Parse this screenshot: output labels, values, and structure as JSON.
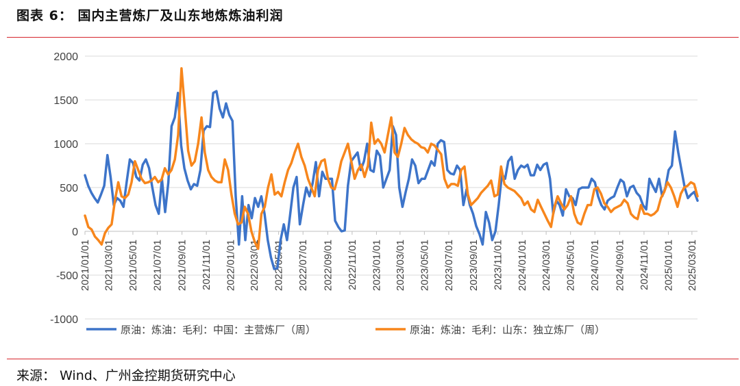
{
  "header": {
    "title": "图表 6：  国内主营炼厂及山东地炼炼油利润"
  },
  "footer": {
    "source": "来源：  Wind、广州金控期货研究中心"
  },
  "colors": {
    "series1": "#3d74c9",
    "series2": "#f7861c",
    "rule": "#d6242a",
    "grid": "#d9d9d9"
  },
  "chart_data": {
    "type": "line",
    "title": "",
    "xlabel": "",
    "ylabel": "",
    "ylim": [
      -1000,
      2000
    ],
    "yticks": [
      "2000",
      "1500",
      "1000",
      "500",
      "0",
      "-500",
      "-1000"
    ],
    "x_range": [
      "2021/01/01",
      "2025/03/15"
    ],
    "x_ticks": [
      "2021/01/01",
      "2021/03/01",
      "2021/05/01",
      "2021/07/01",
      "2021/09/01",
      "2021/11/01",
      "2022/01/01",
      "2022/03/01",
      "2022/05/01",
      "2022/07/01",
      "2022/09/01",
      "2022/11/01",
      "2023/01/01",
      "2023/03/01",
      "2023/05/01",
      "2023/07/01",
      "2023/09/01",
      "2023/11/01",
      "2024/01/01",
      "2024/03/01",
      "2024/05/01",
      "2024/07/01",
      "2024/09/01",
      "2024/11/01",
      "2025/01/01",
      "2025/03/01"
    ],
    "series": [
      {
        "name": "原油：炼油：毛利：中国：主营炼厂（周）",
        "color": "#3d74c9",
        "values": [
          640,
          520,
          440,
          380,
          330,
          420,
          520,
          870,
          620,
          300,
          380,
          350,
          280,
          560,
          820,
          780,
          620,
          580,
          760,
          820,
          720,
          500,
          300,
          200,
          600,
          220,
          560,
          1200,
          1300,
          1580,
          980,
          720,
          580,
          480,
          540,
          520,
          700,
          1150,
          1200,
          1190,
          1580,
          1600,
          1400,
          1300,
          1460,
          1330,
          1260,
          400,
          -150,
          400,
          -100,
          300,
          150,
          380,
          280,
          400,
          200,
          -100,
          -300,
          -430,
          -420,
          -100,
          80,
          -100,
          200,
          500,
          620,
          80,
          300,
          500,
          400,
          550,
          790,
          400,
          680,
          600,
          600,
          600,
          120,
          50,
          0,
          10,
          520,
          800,
          850,
          900,
          700,
          800,
          1000,
          700,
          680,
          920,
          860,
          500,
          600,
          700,
          1200,
          1100,
          500,
          280,
          450,
          600,
          820,
          750,
          550,
          600,
          600,
          700,
          800,
          750,
          1000,
          1040,
          1020,
          700,
          660,
          650,
          750,
          700,
          300,
          480,
          300,
          200,
          60,
          -30,
          -150,
          220,
          100,
          -100,
          0,
          300,
          650,
          600,
          800,
          850,
          600,
          700,
          750,
          730,
          760,
          640,
          640,
          760,
          700,
          760,
          780,
          600,
          200,
          350,
          300,
          180,
          480,
          400,
          380,
          300,
          480,
          500,
          500,
          500,
          600,
          560,
          400,
          300,
          250,
          350,
          380,
          400,
          500,
          590,
          560,
          400,
          500,
          520,
          440,
          400,
          300,
          250,
          600,
          520,
          450,
          600,
          400,
          500,
          700,
          750,
          1140,
          900,
          700,
          500,
          380,
          420,
          450,
          350
        ]
      },
      {
        "name": "原油：炼油：毛利：山东：独立炼厂（周）",
        "color": "#f7861c",
        "values": [
          180,
          50,
          20,
          -60,
          -100,
          -150,
          -20,
          40,
          80,
          350,
          560,
          400,
          380,
          420,
          560,
          800,
          700,
          600,
          550,
          560,
          580,
          620,
          560,
          590,
          720,
          650,
          700,
          820,
          1100,
          1860,
          1400,
          920,
          750,
          800,
          1000,
          1300,
          900,
          700,
          620,
          580,
          560,
          560,
          820,
          700,
          420,
          200,
          80,
          100,
          280,
          200,
          0,
          -120,
          -200,
          200,
          280,
          500,
          650,
          420,
          450,
          400,
          560,
          700,
          780,
          900,
          1000,
          850,
          750,
          600,
          500,
          400,
          700,
          800,
          820,
          600,
          500,
          480,
          620,
          800,
          900,
          1000,
          800,
          600,
          700,
          760,
          620,
          750,
          1240,
          1000,
          1050,
          1000,
          900,
          1100,
          1300,
          900,
          850,
          1000,
          1180,
          1100,
          1050,
          1020,
          1000,
          960,
          950,
          900,
          1000,
          980,
          930,
          880,
          600,
          500,
          540,
          540,
          520,
          700,
          740,
          420,
          300,
          340,
          380,
          440,
          480,
          520,
          580,
          400,
          420,
          740,
          540,
          500,
          480,
          460,
          420,
          380,
          300,
          340,
          250,
          220,
          360,
          280,
          200,
          120,
          50,
          280,
          400,
          320,
          250,
          300,
          400,
          200,
          100,
          80,
          200,
          300,
          300,
          480,
          500,
          430,
          320,
          280,
          220,
          260,
          280,
          300,
          360,
          320,
          200,
          160,
          140,
          300,
          200,
          200,
          180,
          200,
          240,
          380,
          450,
          560,
          500,
          400,
          280,
          430,
          500,
          520,
          560,
          540,
          400
        ]
      }
    ],
    "legend": {
      "position": "bottom",
      "items": [
        "原油：炼油：毛利：中国：主营炼厂（周）",
        "原油：炼油：毛利：山东：独立炼厂（周）"
      ]
    }
  }
}
